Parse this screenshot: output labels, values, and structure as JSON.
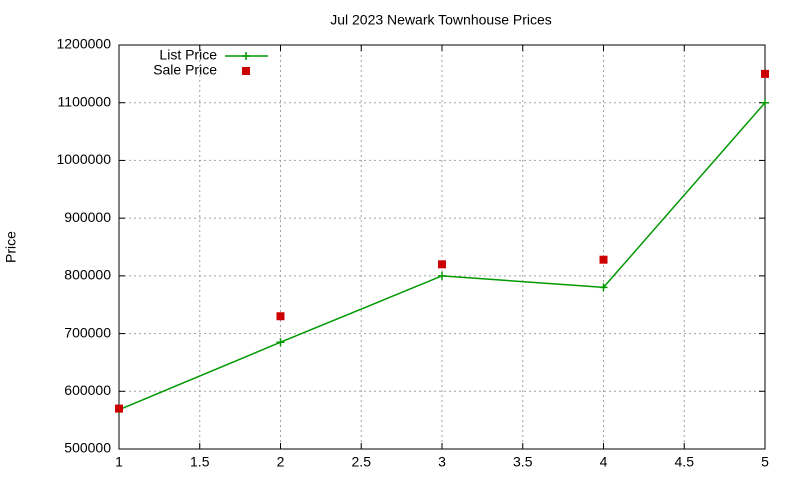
{
  "chart_data": {
    "type": "line",
    "title": "Jul 2023 Newark Townhouse Prices",
    "y_label": "Price",
    "x": [
      1,
      2,
      3,
      4,
      5
    ],
    "series": [
      {
        "name": "List Price",
        "color": "#009900",
        "line": true,
        "marker": "plus",
        "values": [
          568000,
          685000,
          800000,
          780000,
          1100000
        ]
      },
      {
        "name": "Sale Price",
        "color": "#cc0000",
        "line": false,
        "marker": "square",
        "values": [
          570000,
          730000,
          820000,
          828000,
          1150000
        ]
      }
    ],
    "xlim": [
      1,
      5
    ],
    "xticks": [
      1,
      1.5,
      2,
      2.5,
      3,
      3.5,
      4,
      4.5,
      5
    ],
    "ylim": [
      500000,
      1200000
    ],
    "yticks": [
      500000,
      600000,
      700000,
      800000,
      900000,
      1000000,
      1100000,
      1200000
    ],
    "grid": true,
    "legend": "top-left"
  }
}
